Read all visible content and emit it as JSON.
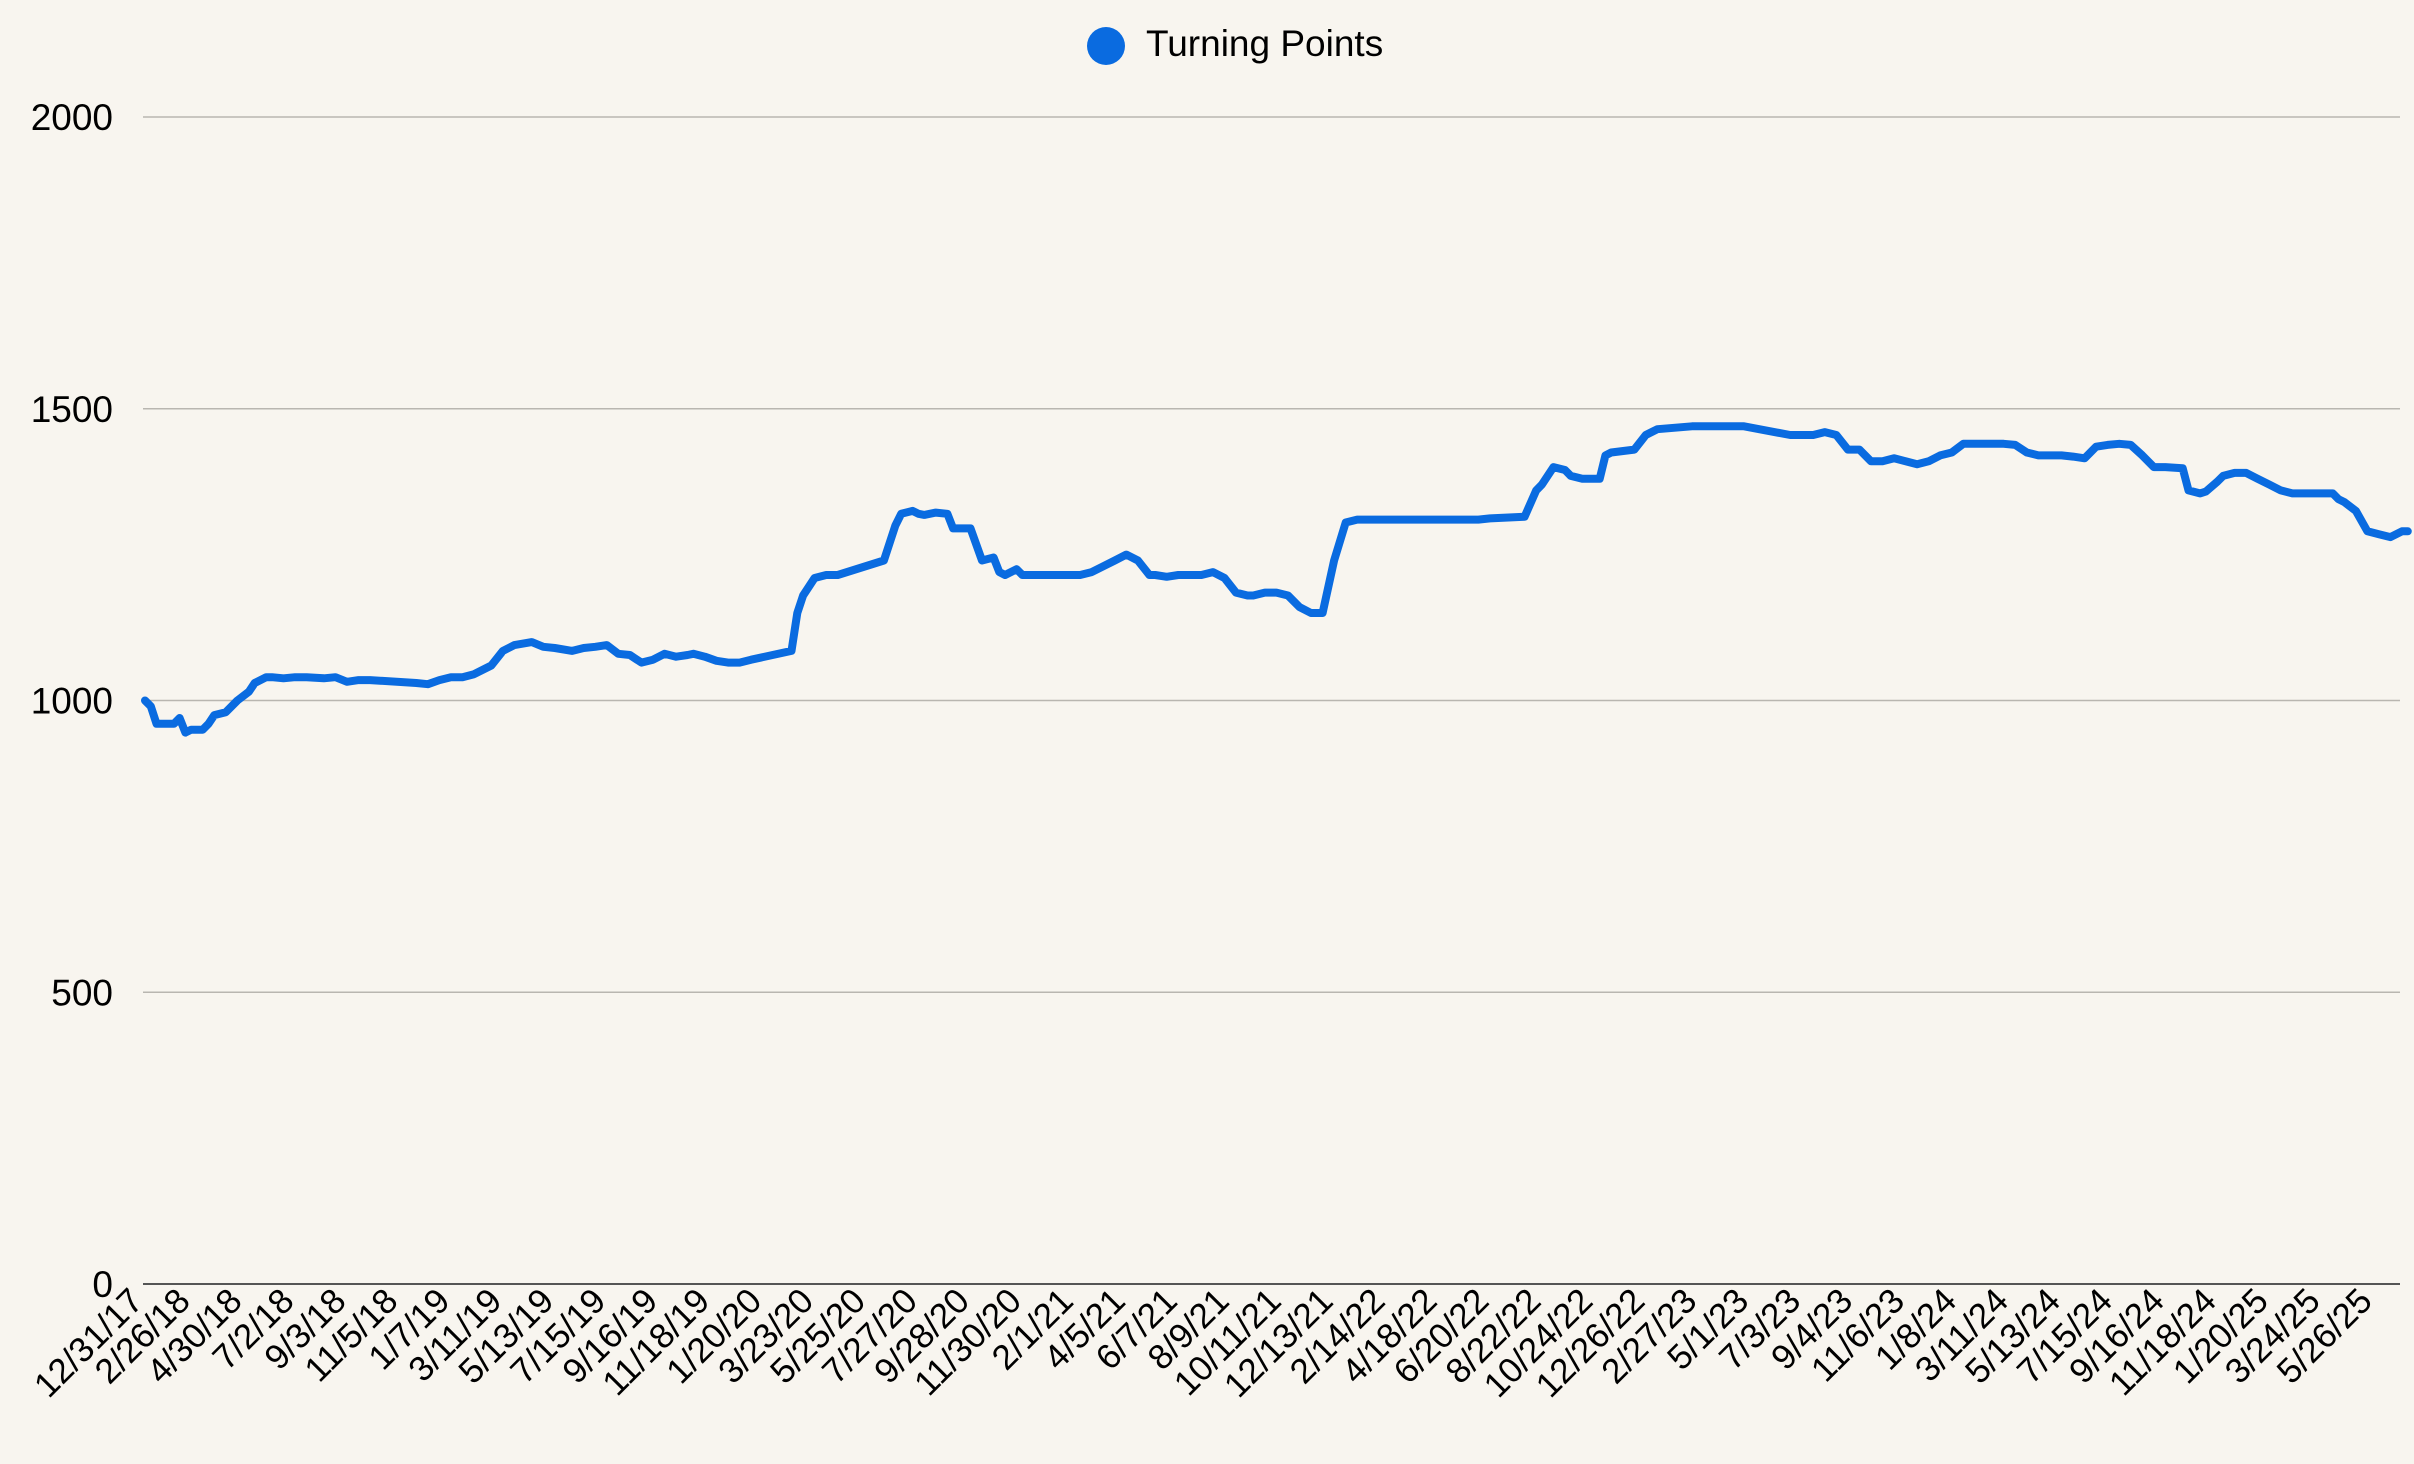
{
  "chart_data": {
    "type": "line",
    "title": "",
    "xlabel": "",
    "ylabel": "",
    "legend": {
      "position": "top-center",
      "entries": [
        "Turning Points"
      ]
    },
    "ylim": [
      0,
      2000
    ],
    "y_ticks": [
      0,
      500,
      1000,
      1500,
      2000
    ],
    "grid": "horizontal",
    "x_tick_labels": [
      "12/31/17",
      "2/26/18",
      "4/30/18",
      "7/2/18",
      "9/3/18",
      "11/5/18",
      "1/7/19",
      "3/11/19",
      "5/13/19",
      "7/15/19",
      "9/16/19",
      "11/18/19",
      "1/20/20",
      "3/23/20",
      "5/25/20",
      "7/27/20",
      "9/28/20",
      "11/30/20",
      "2/1/21",
      "4/5/21",
      "6/7/21",
      "8/9/21",
      "10/11/21",
      "12/13/21",
      "2/14/22",
      "4/18/22",
      "6/20/22",
      "8/22/22",
      "10/24/22",
      "12/26/22",
      "2/27/23",
      "5/1/23",
      "7/3/23",
      "9/4/23",
      "11/6/23",
      "1/8/24",
      "3/11/24",
      "5/13/24",
      "7/15/24",
      "9/16/24",
      "11/18/24",
      "1/20/25",
      "3/24/25",
      "5/26/25"
    ],
    "series": [
      {
        "name": "Turning Points",
        "color": "#0a6be0",
        "x": [
          "12/31/17",
          "1/7/18",
          "1/14/18",
          "2/4/18",
          "2/11/18",
          "2/18/18",
          "2/25/18",
          "3/11/18",
          "3/18/18",
          "3/25/18",
          "4/8/18",
          "4/22/18",
          "5/6/18",
          "5/13/18",
          "5/27/18",
          "6/3/18",
          "6/17/18",
          "7/1/18",
          "7/15/18",
          "8/5/18",
          "8/19/18",
          "9/2/18",
          "9/16/18",
          "9/23/18",
          "9/30/18",
          "11/25/18",
          "12/9/18",
          "12/23/18",
          "1/6/19",
          "1/20/19",
          "2/3/19",
          "2/24/19",
          "3/10/19",
          "3/24/19",
          "4/14/19",
          "4/28/19",
          "5/12/19",
          "6/2/19",
          "6/16/19",
          "6/30/19",
          "7/14/19",
          "7/28/19",
          "8/11/19",
          "8/25/19",
          "9/8/19",
          "9/22/19",
          "10/6/19",
          "10/20/19",
          "10/27/19",
          "11/10/19",
          "11/24/19",
          "12/8/19",
          "12/22/19",
          "1/5/20",
          "2/23/20",
          "3/1/20",
          "3/8/20",
          "3/22/20",
          "4/5/20",
          "4/19/20",
          "6/14/20",
          "6/28/20",
          "7/5/20",
          "7/19/20",
          "7/26/20",
          "8/2/20",
          "8/16/20",
          "8/30/20",
          "9/6/20",
          "9/27/20",
          "10/11/20",
          "10/25/20",
          "11/1/20",
          "11/8/20",
          "11/22/20",
          "11/29/20",
          "12/6/20",
          "12/13/20",
          "1/3/21",
          "2/7/21",
          "2/21/21",
          "3/7/21",
          "3/21/21",
          "4/4/21",
          "4/18/21",
          "5/2/21",
          "5/9/21",
          "5/23/21",
          "6/6/21",
          "7/4/21",
          "7/18/21",
          "8/1/21",
          "8/15/21",
          "8/29/21",
          "9/5/21",
          "9/19/21",
          "10/3/21",
          "10/17/21",
          "10/31/21",
          "11/14/21",
          "11/28/21",
          "12/12/21",
          "12/26/21",
          "1/9/22",
          "1/16/22",
          "6/5/22",
          "6/19/22",
          "7/31/22",
          "8/14/22",
          "8/21/22",
          "9/4/22",
          "9/18/22",
          "9/25/22",
          "10/9/22",
          "10/30/22",
          "11/6/22",
          "11/13/22",
          "12/11/22",
          "12/25/22",
          "1/8/23",
          "2/19/23",
          "3/26/23",
          "4/9/23",
          "4/23/23",
          "6/18/23",
          "7/2/23",
          "7/16/23",
          "7/30/23",
          "8/13/23",
          "8/27/23",
          "9/10/23",
          "9/24/23",
          "10/8/23",
          "10/22/23",
          "11/5/23",
          "11/19/23",
          "12/3/23",
          "12/17/23",
          "12/31/23",
          "1/14/24",
          "3/3/24",
          "3/17/24",
          "3/31/24",
          "4/14/24",
          "4/28/24",
          "5/12/24",
          "5/26/24",
          "6/9/24",
          "6/23/24",
          "7/7/24",
          "7/21/24",
          "8/4/24",
          "8/18/24",
          "9/1/24",
          "9/15/24",
          "10/6/24",
          "10/13/24",
          "10/27/24",
          "11/3/24",
          "11/17/24",
          "11/24/24",
          "12/8/24",
          "12/22/24",
          "1/5/25",
          "1/19/25",
          "2/2/25",
          "2/16/25",
          "3/2/25",
          "3/16/25",
          "4/6/25",
          "4/13/25",
          "4/20/25",
          "5/4/25",
          "5/18/25",
          "6/1/25",
          "6/15/25",
          "6/29/25",
          "7/6/25"
        ],
        "values": [
          1000,
          990,
          960,
          960,
          970,
          945,
          950,
          950,
          960,
          975,
          980,
          1000,
          1015,
          1030,
          1040,
          1040,
          1038,
          1040,
          1040,
          1038,
          1040,
          1032,
          1035,
          1035,
          1035,
          1030,
          1028,
          1035,
          1040,
          1040,
          1045,
          1060,
          1085,
          1095,
          1100,
          1092,
          1090,
          1085,
          1090,
          1092,
          1095,
          1080,
          1078,
          1065,
          1070,
          1080,
          1075,
          1078,
          1080,
          1075,
          1068,
          1065,
          1065,
          1070,
          1085,
          1150,
          1180,
          1210,
          1215,
          1215,
          1240,
          1300,
          1320,
          1325,
          1320,
          1318,
          1322,
          1320,
          1295,
          1295,
          1240,
          1245,
          1220,
          1215,
          1225,
          1215,
          1215,
          1215,
          1215,
          1215,
          1220,
          1230,
          1240,
          1250,
          1240,
          1215,
          1215,
          1212,
          1215,
          1215,
          1220,
          1210,
          1185,
          1180,
          1180,
          1185,
          1185,
          1180,
          1160,
          1150,
          1150,
          1240,
          1305,
          1310,
          1310,
          1310,
          1312,
          1315,
          1360,
          1370,
          1400,
          1395,
          1385,
          1380,
          1380,
          1420,
          1425,
          1430,
          1455,
          1465,
          1470,
          1470,
          1470,
          1470,
          1455,
          1455,
          1455,
          1460,
          1455,
          1430,
          1430,
          1410,
          1410,
          1415,
          1410,
          1405,
          1410,
          1420,
          1425,
          1440,
          1440,
          1438,
          1425,
          1420,
          1420,
          1420,
          1418,
          1415,
          1435,
          1438,
          1440,
          1438,
          1420,
          1400,
          1400,
          1398,
          1360,
          1355,
          1358,
          1375,
          1385,
          1390,
          1390,
          1380,
          1370,
          1360,
          1355,
          1355,
          1355,
          1355,
          1345,
          1340,
          1325,
          1290,
          1285,
          1280,
          1290,
          1290
        ]
      }
    ]
  }
}
